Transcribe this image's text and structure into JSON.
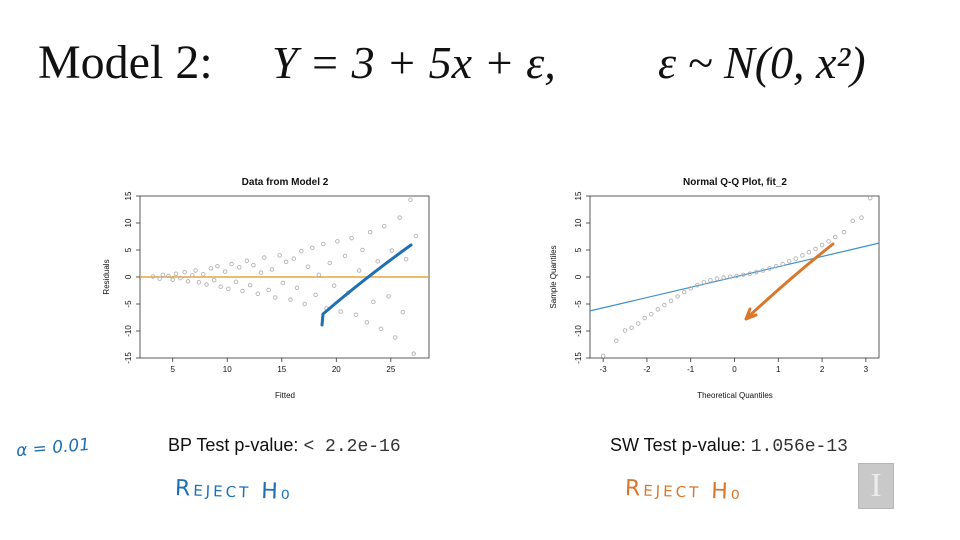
{
  "slide_title": {
    "label": "Model 2:",
    "equation": "Y = 3 + 5x + ε,",
    "error_spec": "ε ~ N(0, x²)"
  },
  "tests": {
    "bp_label": "BP Test p-value:",
    "bp_value": "< 2.2e-16",
    "sw_label": "SW Test p-value:",
    "sw_value": "1.056e-13"
  },
  "annotations": {
    "alpha": "α = 0.01",
    "reject_left": "Reject H₀",
    "reject_right": "Reject H₀"
  },
  "colors": {
    "points": "#b4b4b4",
    "hline": "#e8a33c",
    "blue_ink": "#1f6fb5",
    "orange_ink": "#d9782d",
    "qq_line": "#3f8fc9"
  },
  "logo_letter": "I",
  "chart_data": [
    {
      "type": "scatter",
      "title": "Data from Model 2",
      "xlabel": "Fitted",
      "ylabel": "Residuals",
      "xlim": [
        2,
        28.5
      ],
      "ylim": [
        -15,
        15
      ],
      "xticks": [
        5,
        10,
        15,
        20,
        25
      ],
      "yticks": [
        -15,
        -10,
        -5,
        0,
        5,
        10,
        15
      ],
      "hline": 0,
      "points": [
        [
          3.2,
          0.1
        ],
        [
          3.8,
          -0.3
        ],
        [
          4.1,
          0.4
        ],
        [
          4.6,
          0.2
        ],
        [
          5.0,
          -0.5
        ],
        [
          5.3,
          0.6
        ],
        [
          5.7,
          -0.2
        ],
        [
          6.1,
          0.9
        ],
        [
          6.4,
          -0.8
        ],
        [
          6.8,
          0.3
        ],
        [
          7.1,
          1.2
        ],
        [
          7.4,
          -1.0
        ],
        [
          7.8,
          0.5
        ],
        [
          8.1,
          -1.4
        ],
        [
          8.5,
          1.6
        ],
        [
          8.8,
          -0.6
        ],
        [
          9.1,
          2.0
        ],
        [
          9.4,
          -1.8
        ],
        [
          9.8,
          1.0
        ],
        [
          10.1,
          -2.2
        ],
        [
          10.4,
          2.4
        ],
        [
          10.8,
          -0.9
        ],
        [
          11.1,
          1.8
        ],
        [
          11.4,
          -2.6
        ],
        [
          11.8,
          3.0
        ],
        [
          12.1,
          -1.5
        ],
        [
          12.4,
          2.2
        ],
        [
          12.8,
          -3.1
        ],
        [
          13.1,
          0.8
        ],
        [
          13.4,
          3.6
        ],
        [
          13.8,
          -2.4
        ],
        [
          14.1,
          1.4
        ],
        [
          14.4,
          -3.8
        ],
        [
          14.8,
          4.0
        ],
        [
          15.1,
          -1.1
        ],
        [
          15.4,
          2.8
        ],
        [
          15.8,
          -4.2
        ],
        [
          16.1,
          3.4
        ],
        [
          16.4,
          -2.0
        ],
        [
          16.8,
          4.8
        ],
        [
          17.1,
          -5.0
        ],
        [
          17.4,
          1.9
        ],
        [
          17.8,
          5.4
        ],
        [
          18.1,
          -3.3
        ],
        [
          18.4,
          0.4
        ],
        [
          18.8,
          6.1
        ],
        [
          19.1,
          -5.8
        ],
        [
          19.4,
          2.6
        ],
        [
          19.8,
          -1.6
        ],
        [
          20.1,
          6.6
        ],
        [
          20.4,
          -6.4
        ],
        [
          20.8,
          3.9
        ],
        [
          21.1,
          -2.9
        ],
        [
          21.4,
          7.2
        ],
        [
          21.8,
          -7.0
        ],
        [
          22.1,
          1.2
        ],
        [
          22.4,
          5.0
        ],
        [
          22.8,
          -8.4
        ],
        [
          23.1,
          8.3
        ],
        [
          23.4,
          -4.6
        ],
        [
          23.8,
          2.9
        ],
        [
          24.1,
          -9.6
        ],
        [
          24.4,
          9.4
        ],
        [
          24.8,
          -3.6
        ],
        [
          25.1,
          4.9
        ],
        [
          25.4,
          -11.2
        ],
        [
          25.8,
          11.0
        ],
        [
          26.1,
          -6.5
        ],
        [
          26.4,
          3.3
        ],
        [
          26.8,
          14.3
        ],
        [
          27.1,
          -14.2
        ],
        [
          27.3,
          7.6
        ]
      ]
    },
    {
      "type": "scatter",
      "title": "Normal Q-Q Plot, fit_2",
      "xlabel": "Theoretical Quantiles",
      "ylabel": "Sample Quantiles",
      "xlim": [
        -3.3,
        3.3
      ],
      "ylim": [
        -15,
        15
      ],
      "xticks": [
        -3,
        -2,
        -1,
        0,
        1,
        2,
        3
      ],
      "yticks": [
        -15,
        -10,
        -5,
        0,
        5,
        10,
        15
      ],
      "reference_line": {
        "intercept": 0,
        "slope": 1.9
      },
      "points": [
        [
          -3.0,
          -14.6
        ],
        [
          -2.7,
          -11.8
        ],
        [
          -2.5,
          -9.9
        ],
        [
          -2.35,
          -9.4
        ],
        [
          -2.2,
          -8.6
        ],
        [
          -2.05,
          -7.6
        ],
        [
          -1.9,
          -6.9
        ],
        [
          -1.75,
          -6.0
        ],
        [
          -1.6,
          -5.2
        ],
        [
          -1.45,
          -4.4
        ],
        [
          -1.3,
          -3.6
        ],
        [
          -1.15,
          -2.8
        ],
        [
          -1.0,
          -2.1
        ],
        [
          -0.85,
          -1.5
        ],
        [
          -0.7,
          -1.0
        ],
        [
          -0.55,
          -0.6
        ],
        [
          -0.4,
          -0.3
        ],
        [
          -0.25,
          -0.1
        ],
        [
          -0.1,
          0.05
        ],
        [
          0.05,
          0.2
        ],
        [
          0.2,
          0.4
        ],
        [
          0.35,
          0.6
        ],
        [
          0.5,
          0.9
        ],
        [
          0.65,
          1.2
        ],
        [
          0.8,
          1.6
        ],
        [
          0.95,
          2.0
        ],
        [
          1.1,
          2.4
        ],
        [
          1.25,
          2.9
        ],
        [
          1.4,
          3.4
        ],
        [
          1.55,
          4.0
        ],
        [
          1.7,
          4.6
        ],
        [
          1.85,
          5.2
        ],
        [
          2.0,
          5.9
        ],
        [
          2.15,
          6.6
        ],
        [
          2.3,
          7.4
        ],
        [
          2.5,
          8.3
        ],
        [
          2.7,
          10.4
        ],
        [
          2.9,
          11.0
        ],
        [
          3.1,
          14.6
        ]
      ]
    }
  ]
}
